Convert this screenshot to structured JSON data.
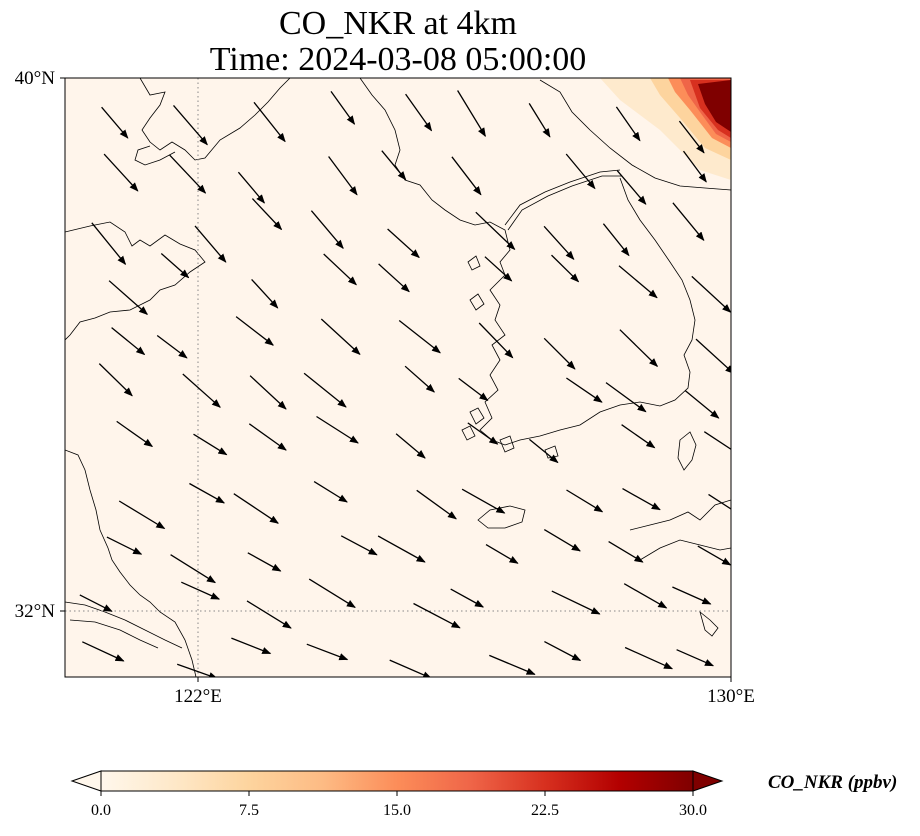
{
  "title_line1": "CO_NKR at 4km",
  "title_line2": "Time: 2024-03-08 05:00:00",
  "map": {
    "lon_range": [
      120,
      130
    ],
    "lat_range": [
      31,
      40
    ],
    "lat_ticks": [
      {
        "value": 40,
        "label": "40°N"
      },
      {
        "value": 32,
        "label": "32°N"
      }
    ],
    "lon_ticks": [
      {
        "value": 122,
        "label": "122°E"
      },
      {
        "value": 130,
        "label": "130°E"
      }
    ],
    "gridlines": {
      "lons": [
        122
      ],
      "lats": [
        32
      ],
      "style": "dotted"
    },
    "field_background_color": "#fff5eb",
    "coastline_color": "#000000",
    "vector_color": "#000000",
    "high_concentration_patch": {
      "location": "top-right corner",
      "max_value": 30
    }
  },
  "colorbar": {
    "label": "CO_NKR (ppbv)",
    "min": 0,
    "max": 30,
    "extend": "both",
    "colormap": "OrRd",
    "tick_values": [
      0,
      7.5,
      15,
      22.5,
      30
    ],
    "tick_labels": [
      "0.0",
      "7.5",
      "15.0",
      "22.5",
      "30.0"
    ],
    "colors": [
      "#fff7ec",
      "#fee8c8",
      "#fdd49e",
      "#fdbb84",
      "#fc8d59",
      "#ef6548",
      "#d7301f",
      "#b30000",
      "#7f0000"
    ]
  }
}
